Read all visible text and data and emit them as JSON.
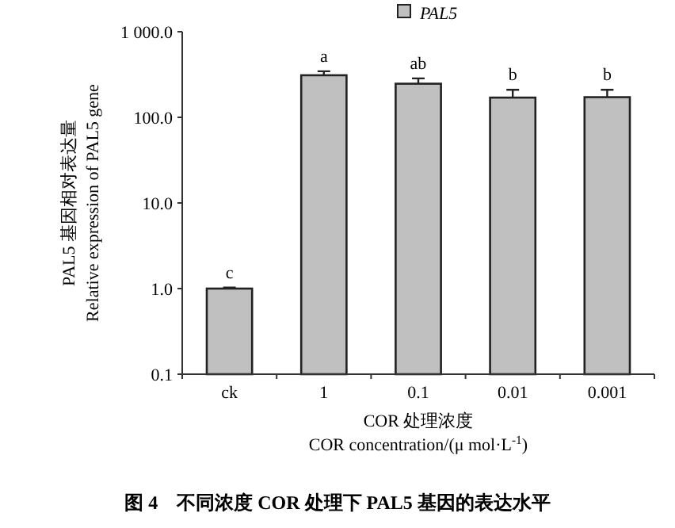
{
  "chart_data": {
    "type": "bar",
    "categories": [
      "ck",
      "1",
      "0.1",
      "0.01",
      "0.001"
    ],
    "series": [
      {
        "name": "PAL5",
        "color": "#c0c0c0",
        "values": [
          1.0,
          310,
          247,
          170,
          172
        ],
        "errors": [
          0.03,
          35,
          38,
          40,
          38
        ]
      }
    ],
    "log": "y",
    "ylim": [
      0.1,
      1000
    ],
    "yticks": [
      {
        "value": 0.1,
        "label": "0.1"
      },
      {
        "value": 1,
        "label": "1.0"
      },
      {
        "value": 10,
        "label": "10.0"
      },
      {
        "value": 100,
        "label": "100.0"
      },
      {
        "value": 1000,
        "label": "1 000.0"
      }
    ],
    "ylabel": "PAL5 基因相对表达量\nRelative expression of PAL5 gene",
    "xlabel": "COR 处理浓度\nCOR concentration/(μ mol·L$^{-1}$)",
    "legend": "top",
    "grid": false,
    "annotations": [
      {
        "text": "c",
        "x": "ck",
        "y": 1.03
      },
      {
        "text": "a",
        "x": "1",
        "y": 345
      },
      {
        "text": "ab",
        "x": "0.1",
        "y": 285
      },
      {
        "text": "b",
        "x": "0.01",
        "y": 210
      },
      {
        "text": "b",
        "x": "0.001",
        "y": 210
      },
      "图 4　不同浓度 COR 处理下 PAL5 基因的表达水平"
    ]
  }
}
